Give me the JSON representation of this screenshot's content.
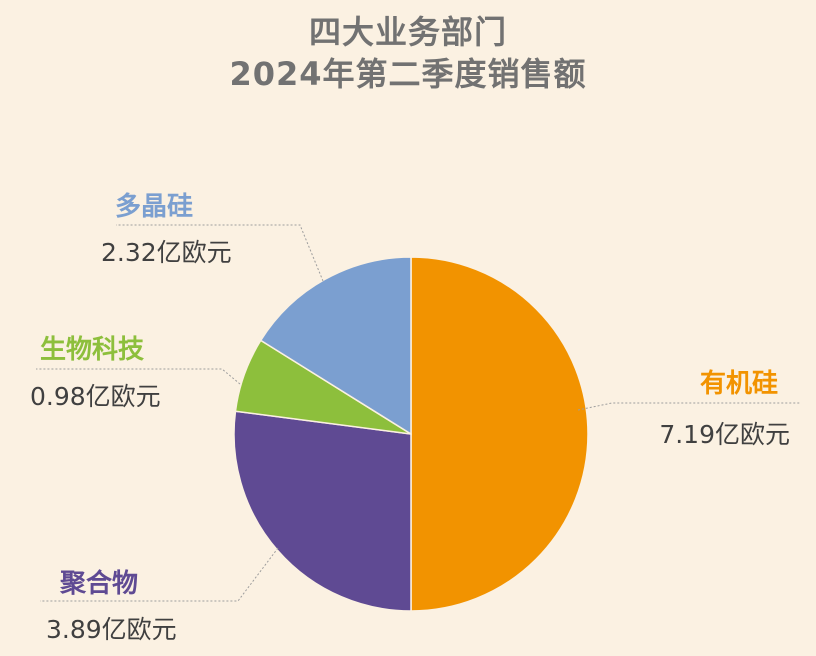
{
  "title_lines": [
    "四大业务部门",
    "2024年第二季度销售额"
  ],
  "chart_data": {
    "type": "pie",
    "title": "四大业务部门 2024年第二季度销售额",
    "unit": "亿欧元",
    "legend": "none",
    "slices": [
      {
        "name": "有机硅",
        "value": 7.19,
        "value_label": "7.19亿欧元",
        "color": "#f29300"
      },
      {
        "name": "聚合物",
        "value": 3.89,
        "value_label": "3.89亿欧元",
        "color": "#5f4a93"
      },
      {
        "name": "生物科技",
        "value": 0.98,
        "value_label": "0.98亿欧元",
        "color": "#8dbf3c"
      },
      {
        "name": "多晶硅",
        "value": 2.32,
        "value_label": "2.32亿欧元",
        "color": "#7b9fd0"
      }
    ]
  },
  "colors": {
    "background": "#fbf1e2",
    "title": "#727272",
    "value_text": "#404040",
    "leader_line": "#9e9e9e"
  }
}
